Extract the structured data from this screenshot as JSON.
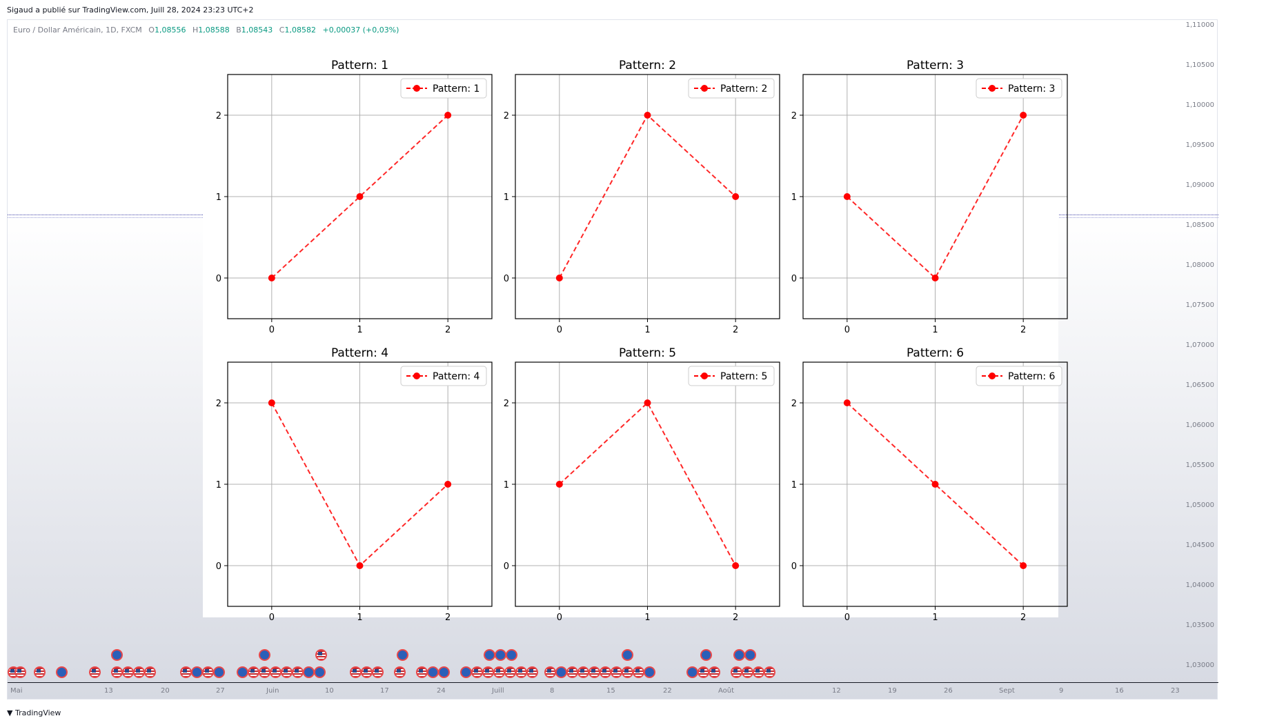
{
  "header": {
    "published": "Sigaud a publié sur TradingView.com, Juill 28, 2024 23:23 UTC+2"
  },
  "legend": {
    "symbol": "Euro / Dollar Américain, 1D, FXCM",
    "open_label": "O",
    "open": "1,08556",
    "high_label": "H",
    "high": "1,08588",
    "low_label": "B",
    "low": "1,08543",
    "close_label": "C",
    "close": "1,08582",
    "change": "+0,00037 (+0,03%)"
  },
  "price_axis": [
    "1,11000",
    "1,10500",
    "1,10000",
    "1,09500",
    "1,09000",
    "1,08500",
    "1,08000",
    "1,07500",
    "1,07000",
    "1,06500",
    "1,06000",
    "1,05500",
    "1,05000",
    "1,04500",
    "1,04000",
    "1,03500",
    "1,03000"
  ],
  "time_axis": [
    "Mai",
    "13",
    "20",
    "27",
    "Juin",
    "10",
    "17",
    "24",
    "Juill",
    "8",
    "15",
    "22",
    "Août",
    "12",
    "19",
    "26",
    "Sept",
    "9",
    "16",
    "23"
  ],
  "footer": {
    "brand": "TradingView"
  },
  "colors": {
    "line": "#ff0000",
    "grid": "#b0b0b0",
    "price_line": "#3d3fa8",
    "up": "#089981"
  },
  "event_icons": {
    "eu": "eu-flag-icon",
    "us": "us-flag-icon"
  },
  "chart_data": [
    {
      "type": "line",
      "title": "Pattern: 1",
      "legend": "Pattern: 1",
      "x": [
        0,
        1,
        2
      ],
      "y": [
        0,
        1,
        2
      ],
      "xticks": [
        "0",
        "1",
        "2"
      ],
      "yticks": [
        "0",
        "1",
        "2"
      ],
      "xlim": [
        -0.5,
        2.5
      ],
      "ylim": [
        -0.5,
        2.5
      ],
      "grid": true,
      "legend_position": "top-right",
      "style": "dashed-with-markers"
    },
    {
      "type": "line",
      "title": "Pattern: 2",
      "legend": "Pattern: 2",
      "x": [
        0,
        1,
        2
      ],
      "y": [
        0,
        2,
        1
      ],
      "xticks": [
        "0",
        "1",
        "2"
      ],
      "yticks": [
        "0",
        "1",
        "2"
      ],
      "xlim": [
        -0.5,
        2.5
      ],
      "ylim": [
        -0.5,
        2.5
      ],
      "grid": true,
      "legend_position": "top-right",
      "style": "dashed-with-markers"
    },
    {
      "type": "line",
      "title": "Pattern: 3",
      "legend": "Pattern: 3",
      "x": [
        0,
        1,
        2
      ],
      "y": [
        1,
        0,
        2
      ],
      "xticks": [
        "0",
        "1",
        "2"
      ],
      "yticks": [
        "0",
        "1",
        "2"
      ],
      "xlim": [
        -0.5,
        2.5
      ],
      "ylim": [
        -0.5,
        2.5
      ],
      "grid": true,
      "legend_position": "top-right",
      "style": "dashed-with-markers"
    },
    {
      "type": "line",
      "title": "Pattern: 4",
      "legend": "Pattern: 4",
      "x": [
        0,
        1,
        2
      ],
      "y": [
        2,
        0,
        1
      ],
      "xticks": [
        "0",
        "1",
        "2"
      ],
      "yticks": [
        "0",
        "1",
        "2"
      ],
      "xlim": [
        -0.5,
        2.5
      ],
      "ylim": [
        -0.5,
        2.5
      ],
      "grid": true,
      "legend_position": "top-right",
      "style": "dashed-with-markers"
    },
    {
      "type": "line",
      "title": "Pattern: 5",
      "legend": "Pattern: 5",
      "x": [
        0,
        1,
        2
      ],
      "y": [
        1,
        2,
        0
      ],
      "xticks": [
        "0",
        "1",
        "2"
      ],
      "yticks": [
        "0",
        "1",
        "2"
      ],
      "xlim": [
        -0.5,
        2.5
      ],
      "ylim": [
        -0.5,
        2.5
      ],
      "grid": true,
      "legend_position": "top-right",
      "style": "dashed-with-markers"
    },
    {
      "type": "line",
      "title": "Pattern: 6",
      "legend": "Pattern: 6",
      "x": [
        0,
        1,
        2
      ],
      "y": [
        2,
        1,
        0
      ],
      "xticks": [
        "0",
        "1",
        "2"
      ],
      "yticks": [
        "0",
        "1",
        "2"
      ],
      "xlim": [
        -0.5,
        2.5
      ],
      "ylim": [
        -0.5,
        2.5
      ],
      "grid": true,
      "legend_position": "top-right",
      "style": "dashed-with-markers"
    }
  ]
}
